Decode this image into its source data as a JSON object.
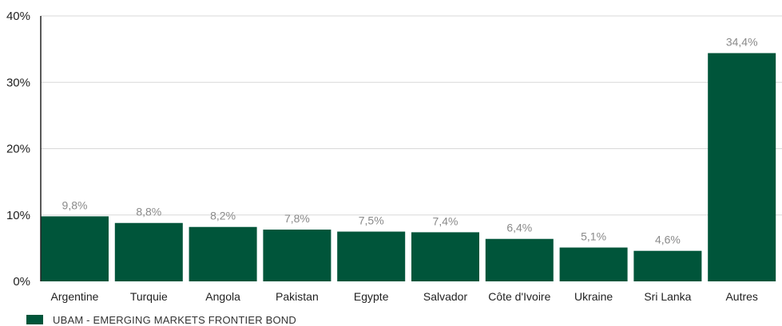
{
  "chart_data": {
    "type": "bar",
    "categories": [
      "Argentine",
      "Turquie",
      "Angola",
      "Pakistan",
      "Egypte",
      "Salvador",
      "Côte d'Ivoire",
      "Ukraine",
      "Sri Lanka",
      "Autres"
    ],
    "series": [
      {
        "name": "UBAM - EMERGING MARKETS FRONTIER BOND",
        "values": [
          9.8,
          8.8,
          8.2,
          7.8,
          7.5,
          7.4,
          6.4,
          5.1,
          4.6,
          34.4
        ],
        "labels": [
          "9,8%",
          "8,8%",
          "8,2%",
          "7,8%",
          "7,5%",
          "7,4%",
          "6,4%",
          "5,1%",
          "4,6%",
          "34,4%"
        ]
      }
    ],
    "ylim": [
      0,
      40
    ],
    "yticks": [
      0,
      10,
      20,
      30,
      40
    ],
    "ytick_labels": [
      "0%",
      "10%",
      "20%",
      "30%",
      "40%"
    ],
    "grid": true,
    "legend_position": "bottom-left",
    "colors": {
      "bar": "#00553a",
      "grid": "#d9d9d9",
      "axis": "#222222",
      "data_label": "#8a8a8a"
    }
  },
  "legend": {
    "label": "UBAM - EMERGING MARKETS FRONTIER BOND"
  }
}
